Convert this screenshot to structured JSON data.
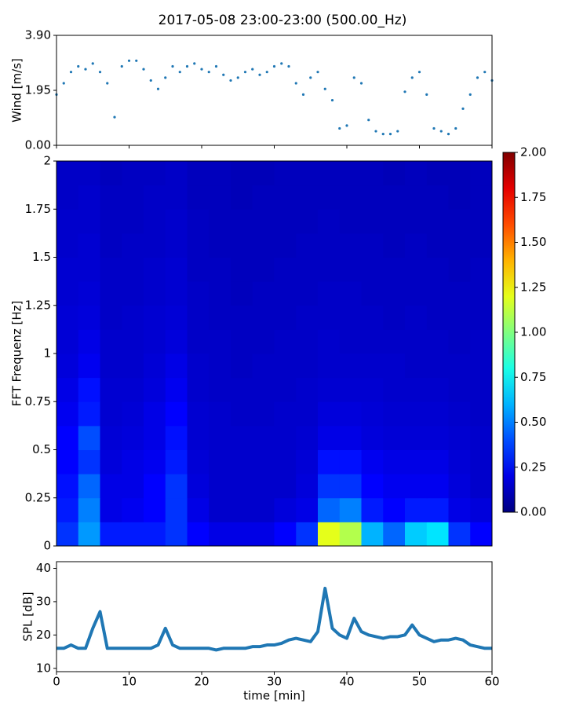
{
  "chart_data": [
    {
      "type": "scatter",
      "title": "2017-05-08 23:00-23:00 (500.00_Hz)",
      "y_label": "Wind [m/s]",
      "color": "#1f77b4",
      "x": [
        0,
        1,
        2,
        3,
        4,
        5,
        6,
        7,
        8,
        9,
        10,
        11,
        12,
        13,
        14,
        15,
        16,
        17,
        18,
        19,
        20,
        21,
        22,
        23,
        24,
        25,
        26,
        27,
        28,
        29,
        30,
        31,
        32,
        33,
        34,
        35,
        36,
        37,
        38,
        39,
        40,
        41,
        42,
        43,
        44,
        45,
        46,
        47,
        48,
        49,
        50,
        51,
        52,
        53,
        54,
        55,
        56,
        57,
        58,
        59,
        60
      ],
      "values": [
        1.8,
        2.2,
        2.6,
        2.8,
        2.7,
        2.9,
        2.6,
        2.2,
        1.0,
        2.8,
        3.0,
        3.0,
        2.7,
        2.3,
        2.0,
        2.4,
        2.8,
        2.6,
        2.8,
        2.9,
        2.7,
        2.6,
        2.8,
        2.5,
        2.3,
        2.4,
        2.6,
        2.7,
        2.5,
        2.6,
        2.8,
        2.9,
        2.8,
        2.2,
        1.8,
        2.4,
        2.6,
        2.0,
        1.6,
        0.6,
        0.7,
        2.4,
        2.2,
        0.9,
        0.5,
        0.4,
        0.4,
        0.5,
        1.9,
        2.4,
        2.6,
        1.8,
        0.6,
        0.5,
        0.4,
        0.6,
        1.3,
        1.8,
        2.4,
        2.6,
        2.3
      ],
      "xlim": [
        0,
        60
      ],
      "xticks": [
        0,
        10,
        20,
        30,
        40,
        50,
        60
      ],
      "ylim": [
        0,
        3.9
      ],
      "yticks": [
        {
          "value": 0,
          "label": "0.00"
        },
        {
          "value": 1.95,
          "label": "1.95"
        },
        {
          "value": 3.9,
          "label": "3.90"
        }
      ]
    },
    {
      "type": "heatmap",
      "y_label": "FFT Frequenz [Hz]",
      "colormap": "jet",
      "x_edges": [
        0,
        3,
        6,
        9,
        12,
        15,
        18,
        21,
        24,
        27,
        30,
        33,
        36,
        39,
        42,
        45,
        48,
        51,
        54,
        57,
        60
      ],
      "y_edges": [
        0,
        0.125,
        0.25,
        0.375,
        0.5,
        0.625,
        0.75,
        0.875,
        1,
        1.125,
        1.25,
        1.375,
        1.5,
        1.625,
        1.75,
        1.875,
        2
      ],
      "values": [
        [
          0.35,
          0.55,
          0.3,
          0.3,
          0.3,
          0.35,
          0.25,
          0.2,
          0.2,
          0.2,
          0.25,
          0.35,
          1.2,
          1.1,
          0.6,
          0.45,
          0.65,
          0.7,
          0.35,
          0.25
        ],
        [
          0.3,
          0.5,
          0.2,
          0.22,
          0.25,
          0.35,
          0.2,
          0.15,
          0.15,
          0.15,
          0.18,
          0.2,
          0.45,
          0.5,
          0.3,
          0.25,
          0.3,
          0.3,
          0.2,
          0.18
        ],
        [
          0.28,
          0.45,
          0.2,
          0.2,
          0.25,
          0.35,
          0.18,
          0.15,
          0.15,
          0.15,
          0.15,
          0.18,
          0.35,
          0.35,
          0.25,
          0.22,
          0.22,
          0.22,
          0.18,
          0.15
        ],
        [
          0.25,
          0.35,
          0.18,
          0.2,
          0.22,
          0.3,
          0.17,
          0.15,
          0.15,
          0.15,
          0.15,
          0.17,
          0.28,
          0.28,
          0.22,
          0.2,
          0.2,
          0.2,
          0.17,
          0.15
        ],
        [
          0.25,
          0.4,
          0.17,
          0.18,
          0.2,
          0.28,
          0.16,
          0.15,
          0.15,
          0.15,
          0.15,
          0.16,
          0.2,
          0.2,
          0.18,
          0.17,
          0.17,
          0.17,
          0.16,
          0.15
        ],
        [
          0.22,
          0.3,
          0.16,
          0.17,
          0.2,
          0.25,
          0.16,
          0.15,
          0.14,
          0.14,
          0.15,
          0.15,
          0.18,
          0.18,
          0.17,
          0.16,
          0.16,
          0.16,
          0.15,
          0.14
        ],
        [
          0.2,
          0.28,
          0.16,
          0.16,
          0.18,
          0.22,
          0.15,
          0.14,
          0.14,
          0.14,
          0.14,
          0.15,
          0.16,
          0.16,
          0.16,
          0.15,
          0.15,
          0.15,
          0.14,
          0.14
        ],
        [
          0.18,
          0.22,
          0.15,
          0.15,
          0.17,
          0.2,
          0.15,
          0.14,
          0.13,
          0.14,
          0.14,
          0.14,
          0.15,
          0.15,
          0.15,
          0.15,
          0.14,
          0.14,
          0.14,
          0.14
        ],
        [
          0.17,
          0.2,
          0.15,
          0.15,
          0.16,
          0.18,
          0.14,
          0.14,
          0.13,
          0.13,
          0.14,
          0.14,
          0.15,
          0.14,
          0.14,
          0.14,
          0.14,
          0.14,
          0.13,
          0.14
        ],
        [
          0.17,
          0.18,
          0.14,
          0.15,
          0.16,
          0.17,
          0.14,
          0.13,
          0.13,
          0.13,
          0.13,
          0.14,
          0.14,
          0.14,
          0.14,
          0.13,
          0.14,
          0.13,
          0.13,
          0.13
        ],
        [
          0.16,
          0.17,
          0.14,
          0.14,
          0.15,
          0.16,
          0.14,
          0.13,
          0.12,
          0.13,
          0.13,
          0.13,
          0.14,
          0.14,
          0.13,
          0.13,
          0.13,
          0.13,
          0.13,
          0.13
        ],
        [
          0.16,
          0.16,
          0.14,
          0.14,
          0.15,
          0.16,
          0.13,
          0.13,
          0.12,
          0.12,
          0.13,
          0.13,
          0.13,
          0.13,
          0.13,
          0.13,
          0.13,
          0.13,
          0.12,
          0.13
        ],
        [
          0.15,
          0.16,
          0.13,
          0.14,
          0.14,
          0.15,
          0.13,
          0.12,
          0.12,
          0.12,
          0.12,
          0.13,
          0.13,
          0.13,
          0.13,
          0.12,
          0.13,
          0.12,
          0.12,
          0.12
        ],
        [
          0.15,
          0.15,
          0.13,
          0.13,
          0.14,
          0.15,
          0.13,
          0.12,
          0.12,
          0.12,
          0.12,
          0.12,
          0.13,
          0.12,
          0.12,
          0.12,
          0.12,
          0.12,
          0.12,
          0.12
        ],
        [
          0.14,
          0.15,
          0.13,
          0.13,
          0.14,
          0.14,
          0.12,
          0.12,
          0.11,
          0.12,
          0.12,
          0.12,
          0.12,
          0.12,
          0.12,
          0.12,
          0.12,
          0.12,
          0.11,
          0.12
        ],
        [
          0.14,
          0.14,
          0.12,
          0.13,
          0.13,
          0.14,
          0.12,
          0.12,
          0.11,
          0.11,
          0.12,
          0.12,
          0.12,
          0.12,
          0.12,
          0.11,
          0.12,
          0.11,
          0.11,
          0.12
        ]
      ],
      "ylim": [
        0,
        2
      ],
      "yticks": [
        0,
        0.25,
        0.5,
        0.75,
        1,
        1.25,
        1.5,
        1.75,
        2
      ],
      "clim": [
        0,
        2
      ],
      "colorbar_ticks": [
        {
          "value": 0,
          "label": "0.00"
        },
        {
          "value": 0.25,
          "label": "0.25"
        },
        {
          "value": 0.5,
          "label": "0.50"
        },
        {
          "value": 0.75,
          "label": "0.75"
        },
        {
          "value": 1,
          "label": "1.00"
        },
        {
          "value": 1.25,
          "label": "1.25"
        },
        {
          "value": 1.5,
          "label": "1.50"
        },
        {
          "value": 1.75,
          "label": "1.75"
        },
        {
          "value": 2,
          "label": "2.00"
        }
      ]
    },
    {
      "type": "line",
      "x_label": "time [min]",
      "y_label": "SPL [dB]",
      "color": "#1f77b4",
      "x": [
        0,
        1,
        2,
        3,
        4,
        5,
        6,
        7,
        8,
        9,
        10,
        11,
        12,
        13,
        14,
        15,
        16,
        17,
        18,
        19,
        20,
        21,
        22,
        23,
        24,
        25,
        26,
        27,
        28,
        29,
        30,
        31,
        32,
        33,
        34,
        35,
        36,
        37,
        38,
        39,
        40,
        41,
        42,
        43,
        44,
        45,
        46,
        47,
        48,
        49,
        50,
        51,
        52,
        53,
        54,
        55,
        56,
        57,
        58,
        59,
        60
      ],
      "values": [
        16,
        16,
        17,
        16,
        16,
        22,
        27,
        16,
        16,
        16,
        16,
        16,
        16,
        16,
        17,
        22,
        17,
        16,
        16,
        16,
        16,
        16,
        15.5,
        16,
        16,
        16,
        16,
        16.5,
        16.5,
        17,
        17,
        17.5,
        18.5,
        19,
        18.5,
        18,
        21,
        34,
        22,
        20,
        19,
        25,
        21,
        20,
        19.5,
        19,
        19.5,
        19.5,
        20,
        23,
        20,
        19,
        18,
        18.5,
        18.5,
        19,
        18.5,
        17,
        16.5,
        16,
        16
      ],
      "xlim": [
        0,
        60
      ],
      "xticks": [
        0,
        10,
        20,
        30,
        40,
        50,
        60
      ],
      "ylim": [
        9,
        42
      ],
      "yticks": [
        10,
        20,
        30,
        40
      ]
    }
  ]
}
